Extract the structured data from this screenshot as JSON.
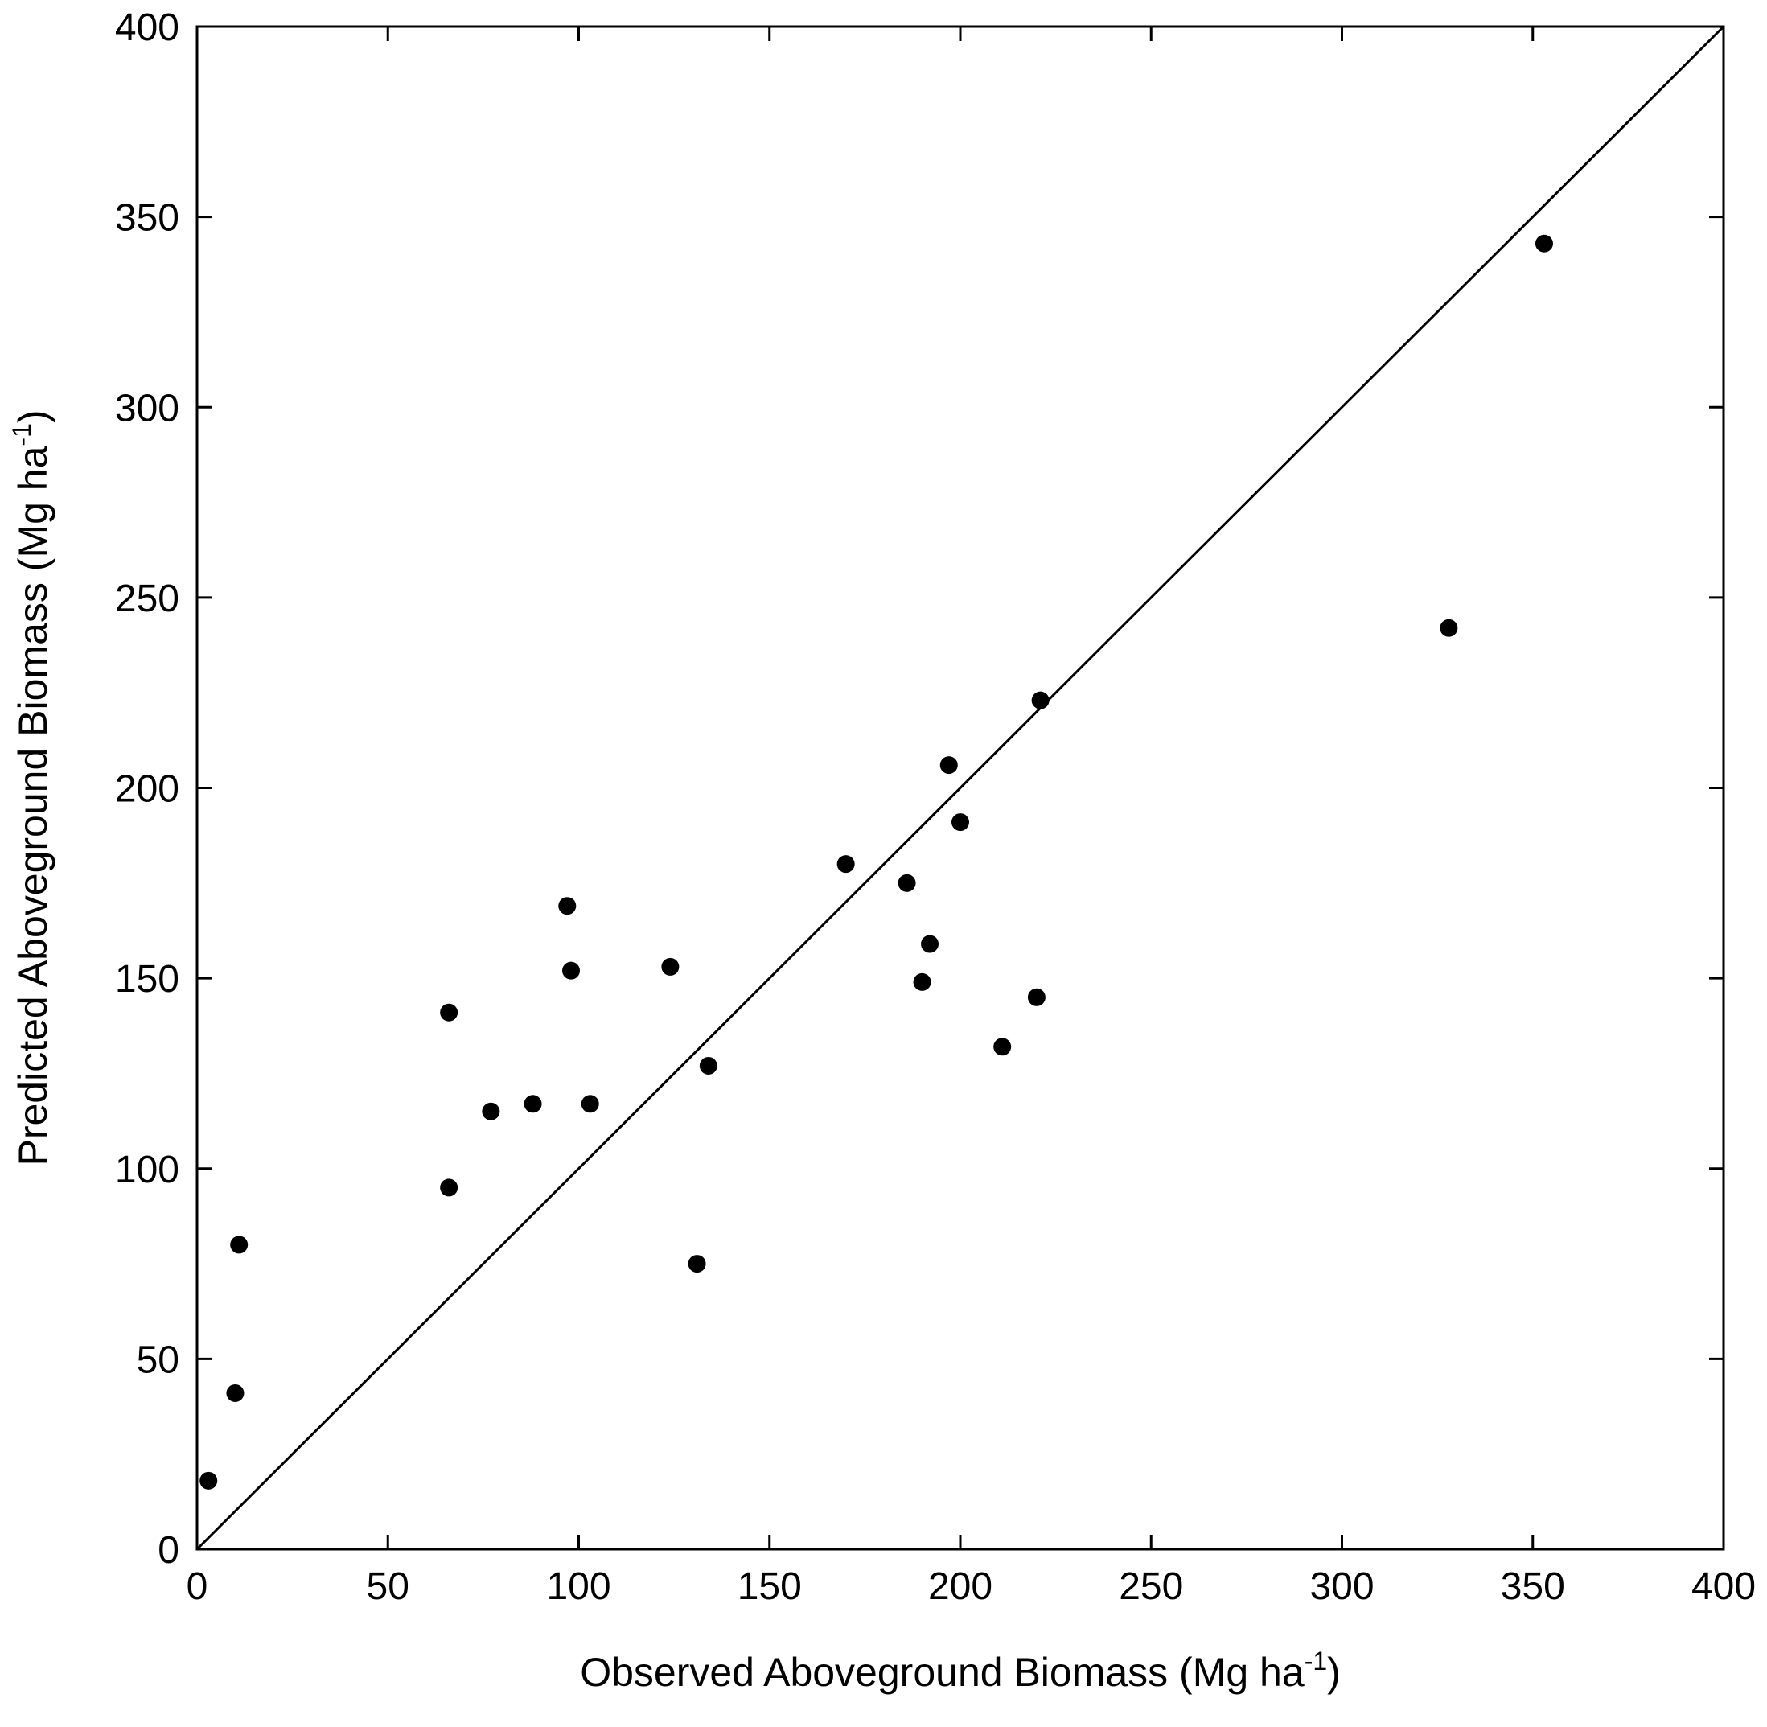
{
  "chart_data": {
    "type": "scatter",
    "title": "",
    "xlabel": "Observed Aboveground Biomass (Mg ha",
    "xlabel_sup": "-1",
    "xlabel_end": ")",
    "ylabel": "Predicted Aboveground Biomass (Mg ha",
    "ylabel_sup": "-1",
    "ylabel_end": ")",
    "xlim": [
      0,
      400
    ],
    "ylim": [
      0,
      400
    ],
    "xticks": [
      "0",
      "50",
      "100",
      "150",
      "200",
      "250",
      "300",
      "350",
      "400"
    ],
    "yticks": [
      "0",
      "50",
      "100",
      "150",
      "200",
      "250",
      "300",
      "350",
      "400"
    ],
    "grid": false,
    "reference_line": "1:1",
    "marker_color": "#000000",
    "series": [
      {
        "points": [
          [
            3,
            18
          ],
          [
            10,
            41
          ],
          [
            11,
            80
          ],
          [
            66,
            95
          ],
          [
            66,
            141
          ],
          [
            77,
            115
          ],
          [
            88,
            117
          ],
          [
            97,
            169
          ],
          [
            98,
            152
          ],
          [
            103,
            117
          ],
          [
            124,
            153
          ],
          [
            131,
            75
          ],
          [
            134,
            127
          ],
          [
            170,
            180
          ],
          [
            186,
            175
          ],
          [
            190,
            149
          ],
          [
            192,
            159
          ],
          [
            197,
            206
          ],
          [
            200,
            191
          ],
          [
            211,
            132
          ],
          [
            220,
            145
          ],
          [
            221,
            223
          ],
          [
            328,
            242
          ],
          [
            353,
            343
          ]
        ]
      }
    ]
  }
}
